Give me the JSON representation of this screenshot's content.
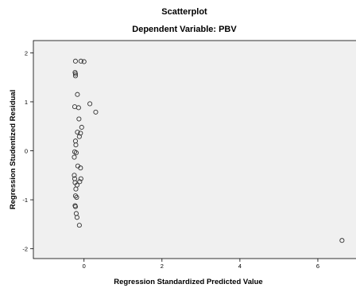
{
  "chart_data": {
    "type": "scatter",
    "title": "Scatterplot",
    "subtitle": "Dependent Variable: PBV",
    "xlabel": "Regression Standardized Predicted Value",
    "ylabel": "Regression Studentized Residual",
    "xlim": [
      -1.3,
      7.0
    ],
    "ylim": [
      -2.2,
      2.25
    ],
    "xticks": [
      0,
      2,
      4,
      6
    ],
    "yticks": [
      -2,
      -1,
      0,
      1,
      2
    ],
    "plot_background": "#f0f0f0",
    "marker_color": "#333333",
    "grid": false,
    "legend": "none",
    "points": [
      {
        "x": -0.22,
        "y": 1.83
      },
      {
        "x": -0.08,
        "y": 1.83
      },
      {
        "x": 0.0,
        "y": 1.82
      },
      {
        "x": -0.23,
        "y": 1.6
      },
      {
        "x": -0.22,
        "y": 1.57
      },
      {
        "x": -0.22,
        "y": 1.53
      },
      {
        "x": -0.17,
        "y": 1.15
      },
      {
        "x": 0.15,
        "y": 0.96
      },
      {
        "x": -0.24,
        "y": 0.9
      },
      {
        "x": -0.14,
        "y": 0.88
      },
      {
        "x": 0.3,
        "y": 0.79
      },
      {
        "x": -0.13,
        "y": 0.65
      },
      {
        "x": -0.06,
        "y": 0.48
      },
      {
        "x": -0.17,
        "y": 0.38
      },
      {
        "x": -0.09,
        "y": 0.36
      },
      {
        "x": -0.12,
        "y": 0.29
      },
      {
        "x": -0.22,
        "y": 0.2
      },
      {
        "x": -0.21,
        "y": 0.12
      },
      {
        "x": -0.24,
        "y": -0.02
      },
      {
        "x": -0.2,
        "y": -0.04
      },
      {
        "x": -0.25,
        "y": -0.13
      },
      {
        "x": -0.16,
        "y": -0.31
      },
      {
        "x": -0.09,
        "y": -0.35
      },
      {
        "x": -0.25,
        "y": -0.5
      },
      {
        "x": -0.24,
        "y": -0.57
      },
      {
        "x": -0.08,
        "y": -0.57
      },
      {
        "x": -0.23,
        "y": -0.65
      },
      {
        "x": -0.11,
        "y": -0.63
      },
      {
        "x": -0.18,
        "y": -0.7
      },
      {
        "x": -0.21,
        "y": -0.78
      },
      {
        "x": -0.22,
        "y": -0.92
      },
      {
        "x": -0.19,
        "y": -0.95
      },
      {
        "x": -0.23,
        "y": -1.12
      },
      {
        "x": -0.22,
        "y": -1.14
      },
      {
        "x": -0.2,
        "y": -1.28
      },
      {
        "x": -0.18,
        "y": -1.36
      },
      {
        "x": -0.12,
        "y": -1.52
      },
      {
        "x": 6.62,
        "y": -1.83
      }
    ]
  }
}
